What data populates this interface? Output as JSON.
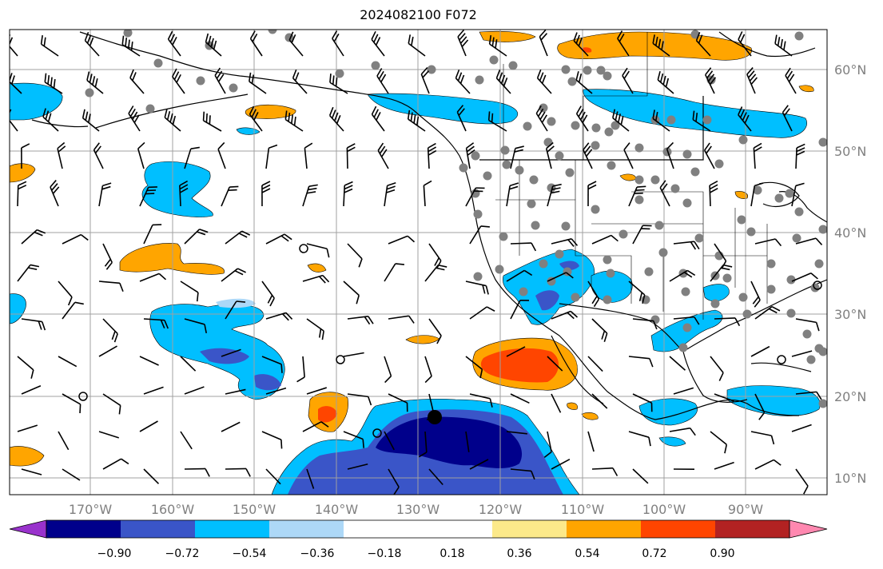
{
  "title": "2024082100 F072",
  "lon_labels": [
    "170°W",
    "160°W",
    "150°W",
    "140°W",
    "130°W",
    "120°W",
    "110°W",
    "100°W",
    "90°W"
  ],
  "lat_labels": [
    "60°N",
    "50°N",
    "40°N",
    "30°N",
    "20°N",
    "10°N"
  ],
  "colorbar": {
    "colors": [
      "#9932cc",
      "#00008b",
      "#3a55c8",
      "#00bfff",
      "#add8f7",
      "#ffffff",
      "#ffffff",
      "#fce98a",
      "#ffa500",
      "#ff4500",
      "#b22222",
      "#ff88b0"
    ],
    "labels": [
      "−0.90",
      "−0.72",
      "−0.54",
      "−0.36",
      "−0.18",
      "0.18",
      "0.36",
      "0.54",
      "0.72",
      "0.90"
    ]
  },
  "legend_colors": {
    "station_marker": "#808080",
    "gridline": "#a0a0a0",
    "barb": "#000000",
    "coast": "#000000"
  },
  "icons": {
    "barb": "wind-barb-icon",
    "station": "station-dot-icon",
    "calm": "calm-circle-icon",
    "center": "storm-center-icon"
  }
}
